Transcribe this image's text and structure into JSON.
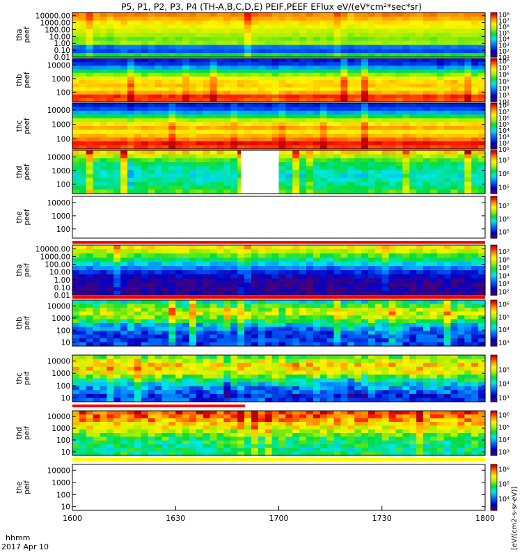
{
  "title": "P5, P1, P2, P3, P4 (TH-A,B,C,D,E) PEIF,PEEF EFlux eV/(eV*cm²*sec*sr)",
  "x_axis": {
    "tick_labels": [
      "1600",
      "1630",
      "1700",
      "1730",
      "1800"
    ],
    "format_label": "hhmm",
    "date_label": "2017 Apr 10"
  },
  "colorbar_unit_label": "[eV/(cm2-s-sr-eV)]",
  "colors": {
    "background": "#ffffff",
    "axis": "#000000",
    "gap_bar": "#ff0000",
    "gap_bar_yellow": "#ffff00",
    "missing_data": "#ffffff"
  },
  "chart_data": [
    {
      "type": "heatmap",
      "probe": "tha",
      "product": "peef",
      "panel_label_1": "tha",
      "panel_label_2": "peef",
      "y_tick_labels": [
        "10000.00",
        "1000.00",
        "100.00",
        "10.00",
        "1.00",
        "0.10",
        "0.01"
      ],
      "y_scale": "log",
      "ylim": [
        0.01,
        30000
      ],
      "x_range": [
        "16:00",
        "18:00"
      ],
      "colorbar_ticks": [
        "10⁸",
        "10⁷",
        "10⁶",
        "10⁵",
        "10⁴",
        "10³",
        "10²",
        "10¹"
      ],
      "colorbar_range_log10": [
        1,
        8.3
      ],
      "rows_high_to_low_log10_eflux": [
        7.3,
        7.0,
        6.6,
        6.3,
        6.0,
        5.7,
        5.4,
        5.6,
        3.0,
        2.6,
        4.9
      ]
    },
    {
      "type": "heatmap",
      "probe": "thb",
      "product": "peef",
      "panel_label_1": "thb",
      "panel_label_2": "peef",
      "y_tick_labels": [
        "10000",
        "1000",
        "100"
      ],
      "y_scale": "log",
      "ylim": [
        20,
        30000
      ],
      "x_range": [
        "16:00",
        "18:00"
      ],
      "colorbar_ticks": [
        "10⁸",
        "10⁷",
        "10⁶",
        "10⁵",
        "10⁴",
        "10³",
        "10²"
      ],
      "colorbar_range_log10": [
        2,
        8.3
      ],
      "rows_high_to_low_log10_eflux": [
        3.0,
        3.2,
        4.0,
        5.2,
        5.9,
        6.6,
        6.9,
        7.0,
        6.8,
        7.2,
        7.9,
        7.7
      ]
    },
    {
      "type": "heatmap",
      "probe": "thc",
      "product": "peef",
      "panel_label_1": "thc",
      "panel_label_2": "peef",
      "y_tick_labels": [
        "10000",
        "1000",
        "100"
      ],
      "y_scale": "log",
      "ylim": [
        20,
        30000
      ],
      "x_range": [
        "16:00",
        "18:00"
      ],
      "colorbar_ticks": [
        "10⁸",
        "10⁷",
        "10⁶",
        "10⁵",
        "10⁴",
        "10³",
        "10²",
        "10¹"
      ],
      "colorbar_range_log10": [
        1,
        8.3
      ],
      "rows_high_to_low_log10_eflux": [
        2.2,
        2.6,
        3.4,
        4.8,
        5.8,
        6.6,
        7.0,
        6.5,
        6.9,
        7.4,
        8.0,
        7.7
      ]
    },
    {
      "type": "heatmap",
      "probe": "thd",
      "product": "peef",
      "panel_label_1": "thd",
      "panel_label_2": "peef",
      "y_tick_labels": [
        "10000",
        "1000",
        "100"
      ],
      "y_scale": "log",
      "ylim": [
        20,
        30000
      ],
      "x_range": [
        "16:00",
        "18:00"
      ],
      "missing_interval": [
        "16:49",
        "17:00"
      ],
      "colorbar_ticks": [
        "10⁷",
        "10⁶",
        "10⁵"
      ],
      "colorbar_range_log10": [
        4.5,
        7.7
      ],
      "rows_high_to_low_log10_eflux": [
        7.0,
        6.6,
        6.3,
        6.1,
        6.0,
        5.9,
        5.8,
        5.9,
        6.0,
        6.1,
        6.3
      ]
    },
    {
      "type": "heatmap",
      "probe": "the",
      "product": "peef",
      "panel_label_1": "the",
      "panel_label_2": "peef",
      "y_tick_labels": [
        "10000",
        "1000",
        "100"
      ],
      "y_scale": "log",
      "ylim": [
        20,
        30000
      ],
      "x_range": [
        "16:00",
        "18:00"
      ],
      "no_data": true,
      "colorbar_ticks": [
        "10⁷",
        "10⁶",
        "10⁵"
      ],
      "colorbar_range_log10": [
        4.5,
        7.7
      ],
      "rows_high_to_low_log10_eflux": []
    },
    {
      "type": "heatmap",
      "probe": "tha",
      "product": "peif",
      "panel_label_1": "tha",
      "panel_label_2": "peif",
      "y_tick_labels": [
        "10000.00",
        "1000.00",
        "100.00",
        "10.00",
        "1.00",
        "0.10",
        "0.01"
      ],
      "y_scale": "log",
      "ylim": [
        0.01,
        30000
      ],
      "x_range": [
        "16:00",
        "18:00"
      ],
      "colorbar_ticks": [
        "10⁷",
        "10⁶",
        "10⁵",
        "10⁴",
        "10³",
        "10²"
      ],
      "colorbar_range_log10": [
        1.5,
        7.8
      ],
      "rows_high_to_low_log10_eflux": [
        6.2,
        5.7,
        5.1,
        4.6,
        3.9,
        3.3,
        2.6,
        2.2,
        1.9,
        1.8,
        1.8,
        1.9
      ]
    },
    {
      "type": "heatmap",
      "probe": "thb",
      "product": "peif",
      "panel_label_1": "thb",
      "panel_label_2": "peif",
      "y_tick_labels": [
        "10000",
        "1000",
        "100",
        "10"
      ],
      "y_scale": "log",
      "ylim": [
        5,
        30000
      ],
      "x_range": [
        "16:00",
        "18:00"
      ],
      "colorbar_ticks": [
        "10⁶",
        "10⁵",
        "10⁴",
        "10³"
      ],
      "colorbar_range_log10": [
        2.7,
        6.3
      ],
      "rows_high_to_low_log10_eflux": [
        4.2,
        4.6,
        5.0,
        5.1,
        4.9,
        4.5,
        4.0,
        3.7,
        3.5,
        3.4,
        3.4,
        3.4
      ]
    },
    {
      "type": "heatmap",
      "probe": "thc",
      "product": "peif",
      "panel_label_1": "thc",
      "panel_label_2": "peif",
      "y_tick_labels": [
        "10000",
        "1000",
        "100",
        "10"
      ],
      "y_scale": "log",
      "ylim": [
        5,
        30000
      ],
      "x_range": [
        "16:00",
        "18:00"
      ],
      "colorbar_ticks": [
        "10⁵",
        "10⁴",
        "10³"
      ],
      "colorbar_range_log10": [
        2.7,
        6.0
      ],
      "rows_high_to_low_log10_eflux": [
        4.6,
        5.0,
        5.3,
        5.2,
        5.0,
        4.7,
        4.3,
        4.0,
        3.7,
        3.5,
        3.3,
        3.4
      ]
    },
    {
      "type": "heatmap",
      "probe": "thd",
      "product": "peif",
      "panel_label_1": "thd",
      "panel_label_2": "peif",
      "y_tick_labels": [
        "10000",
        "1000",
        "100",
        "10"
      ],
      "y_scale": "log",
      "ylim": [
        5,
        30000
      ],
      "x_range": [
        "16:00",
        "18:00"
      ],
      "colorbar_ticks": [
        "10⁶",
        "10⁵",
        "10⁴",
        "10³"
      ],
      "colorbar_range_log10": [
        2.7,
        6.3
      ],
      "rows_high_to_low_log10_eflux": [
        6.0,
        5.9,
        5.7,
        5.5,
        5.3,
        5.1,
        4.8,
        4.6,
        4.5,
        4.4,
        4.4,
        4.5
      ]
    },
    {
      "type": "heatmap",
      "probe": "the",
      "product": "peif",
      "panel_label_1": "the",
      "panel_label_2": "peif",
      "y_tick_labels": [
        "10000",
        "1000",
        "100",
        "10"
      ],
      "y_scale": "log",
      "ylim": [
        5,
        30000
      ],
      "x_range": [
        "16:00",
        "18:00"
      ],
      "no_data": true,
      "colorbar_ticks": [
        "10⁶",
        "10⁵",
        "10⁴"
      ],
      "colorbar_range_log10": [
        3.2,
        6.3
      ],
      "rows_high_to_low_log10_eflux": []
    }
  ]
}
